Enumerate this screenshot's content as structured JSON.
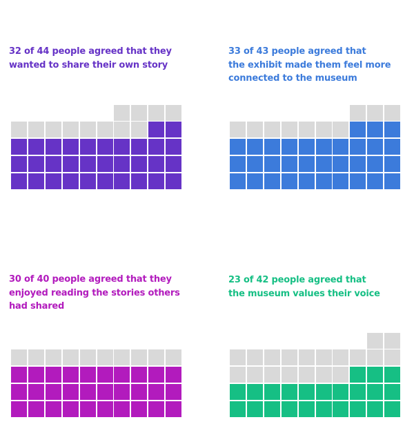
{
  "chart_data": [
    {
      "type": "waffle",
      "title": "32 of 44 people agreed that they\nwanted to share their own story",
      "agreed": 32,
      "total": 44,
      "color": "#6633c6",
      "empty_color": "#d9d9d9",
      "columns": 10
    },
    {
      "type": "waffle",
      "title": "33 of 43 people agreed that\nthe exhibit made them feel more\nconnected to the museum",
      "agreed": 33,
      "total": 43,
      "color": "#3c7bdb",
      "empty_color": "#d9d9d9",
      "columns": 10
    },
    {
      "type": "waffle",
      "title": "30 of 40 people agreed that they\nenjoyed reading the stories others\nhad shared",
      "agreed": 30,
      "total": 40,
      "color": "#b21bbd",
      "empty_color": "#d9d9d9",
      "columns": 10
    },
    {
      "type": "waffle",
      "title": "23 of 42 people agreed that\nthe museum values their voice",
      "agreed": 23,
      "total": 42,
      "color": "#16bf84",
      "empty_color": "#d9d9d9",
      "columns": 10
    }
  ]
}
